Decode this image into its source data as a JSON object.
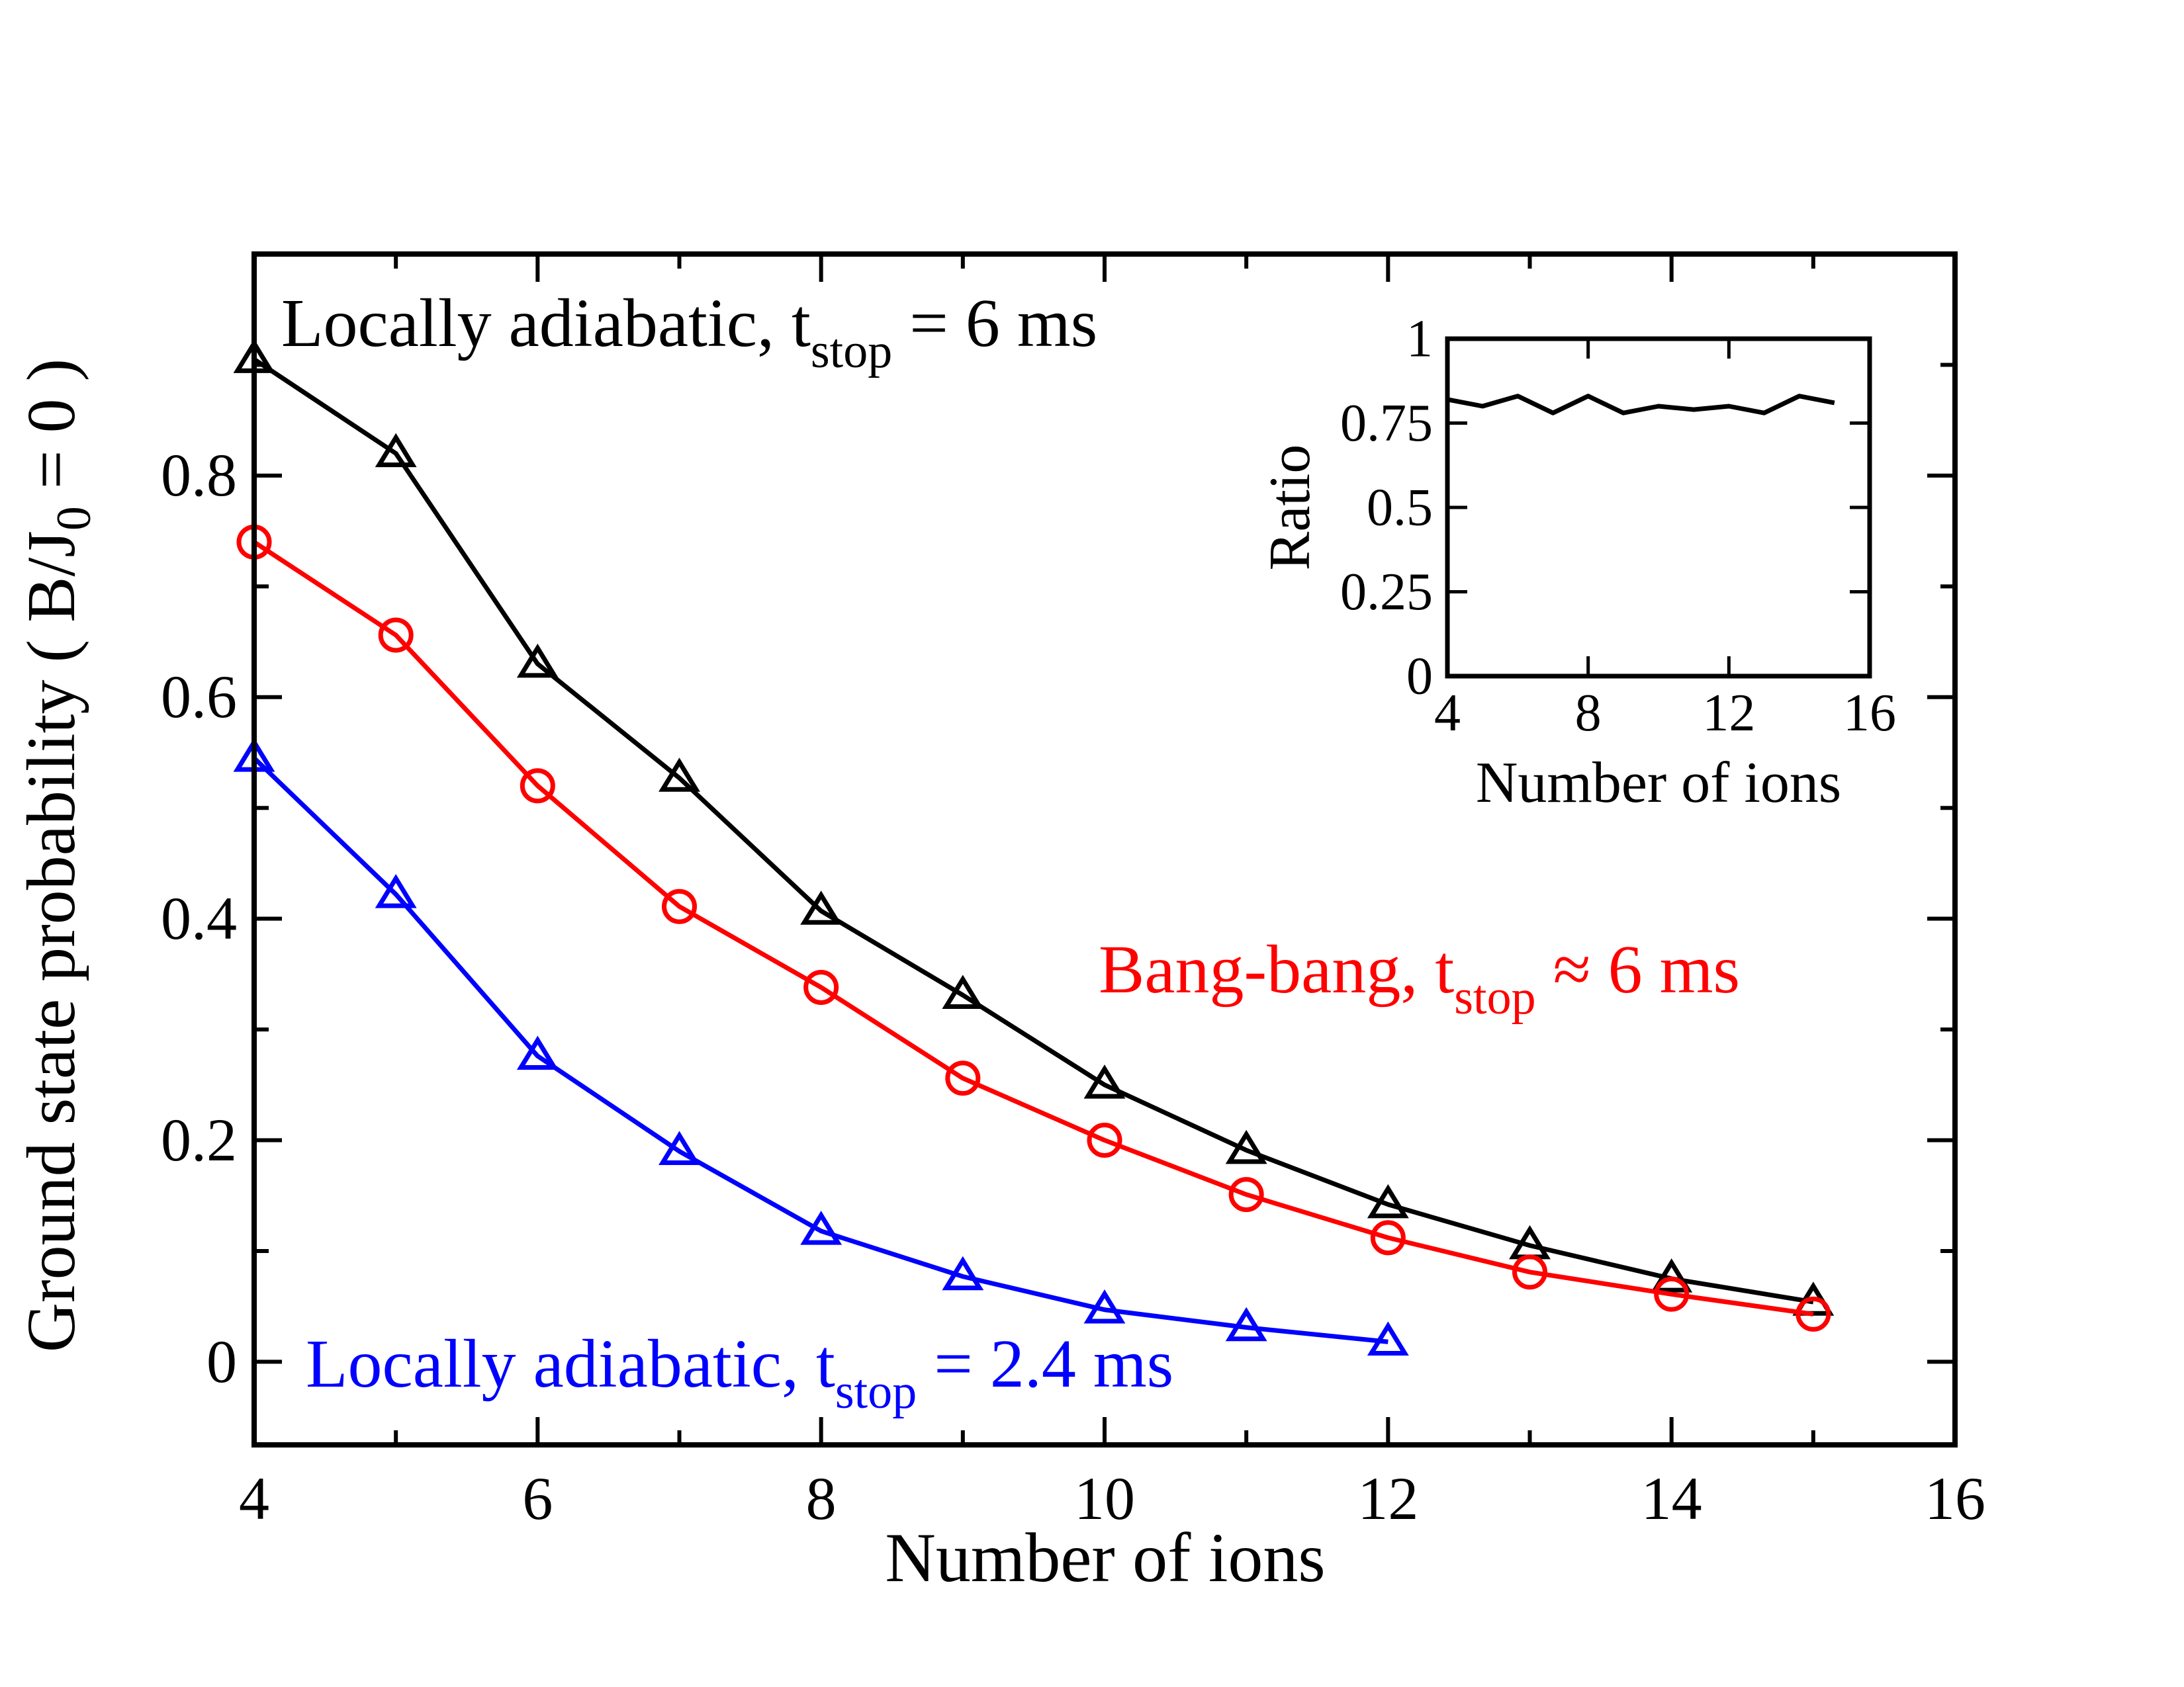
{
  "chart_data": [
    {
      "id": "main",
      "type": "line",
      "xlabel": "Number of ions",
      "ylabel": "Ground state probability ( B/J₀ = 0 )",
      "ylabel_parts": {
        "prefix": "Ground state probability ( B/J",
        "sub": "0",
        "suffix": " = 0 )"
      },
      "xlim": [
        4,
        16
      ],
      "ylim": [
        -0.075,
        1.0
      ],
      "xticks": [
        4,
        6,
        8,
        10,
        12,
        14,
        16
      ],
      "xtick_labels": [
        "4",
        "6",
        "8",
        "10",
        "12",
        "14",
        "16"
      ],
      "yticks": [
        0,
        0.2,
        0.4,
        0.6,
        0.8
      ],
      "ytick_labels": [
        "0",
        "0.2",
        "0.4",
        "0.6",
        "0.8"
      ],
      "x_minor_step": 1,
      "y_minor_step": 0.1,
      "series": [
        {
          "name": "Locally adiabatic, t_stop = 6 ms",
          "label_main": "Locally adiabatic, t",
          "label_sub": "stop",
          "label_tail": " = 6 ms",
          "color": "#000000",
          "marker": "triangle",
          "x": [
            4,
            5,
            6,
            7,
            8,
            9,
            10,
            11,
            12,
            13,
            14,
            15
          ],
          "values": [
            0.905,
            0.82,
            0.63,
            0.527,
            0.407,
            0.331,
            0.25,
            0.191,
            0.142,
            0.105,
            0.075,
            0.054
          ]
        },
        {
          "name": "Bang-bang, t_stop ≈ 6 ms",
          "label_main": "Bang-bang, t",
          "label_sub": "stop",
          "label_tail": " ≈  6 ms",
          "color": "#ff0000",
          "marker": "circle",
          "x": [
            4,
            5,
            6,
            7,
            8,
            9,
            10,
            11,
            12,
            13,
            14,
            15
          ],
          "values": [
            0.74,
            0.656,
            0.52,
            0.411,
            0.338,
            0.256,
            0.2,
            0.151,
            0.112,
            0.081,
            0.061,
            0.043
          ]
        },
        {
          "name": "Locally adiabatic, t_stop = 2.4 ms",
          "label_main": "Locally adiabatic, t",
          "label_sub": "stop",
          "label_tail": " = 2.4 ms",
          "color": "#0000ff",
          "marker": "triangle",
          "x": [
            4,
            5,
            6,
            7,
            8,
            9,
            10,
            11,
            12
          ],
          "values": [
            0.545,
            0.422,
            0.276,
            0.19,
            0.118,
            0.077,
            0.047,
            0.031,
            0.018
          ]
        }
      ]
    },
    {
      "id": "inset",
      "type": "line",
      "xlabel": "Number of ions",
      "ylabel": "Ratio",
      "xlim": [
        4,
        16
      ],
      "ylim": [
        0,
        1
      ],
      "xticks": [
        4,
        8,
        12,
        16
      ],
      "xtick_labels": [
        "4",
        "8",
        "12",
        "16"
      ],
      "yticks": [
        0,
        0.25,
        0.5,
        0.75,
        1
      ],
      "ytick_labels": [
        "0",
        "0.25",
        "0.5",
        "0.75",
        "1"
      ],
      "series": [
        {
          "name": "Ratio",
          "color": "#000000",
          "x": [
            4,
            5,
            6,
            7,
            8,
            9,
            10,
            11,
            12,
            13,
            14,
            15
          ],
          "values": [
            0.82,
            0.8,
            0.83,
            0.78,
            0.83,
            0.78,
            0.8,
            0.79,
            0.8,
            0.78,
            0.83,
            0.81
          ]
        }
      ]
    }
  ]
}
